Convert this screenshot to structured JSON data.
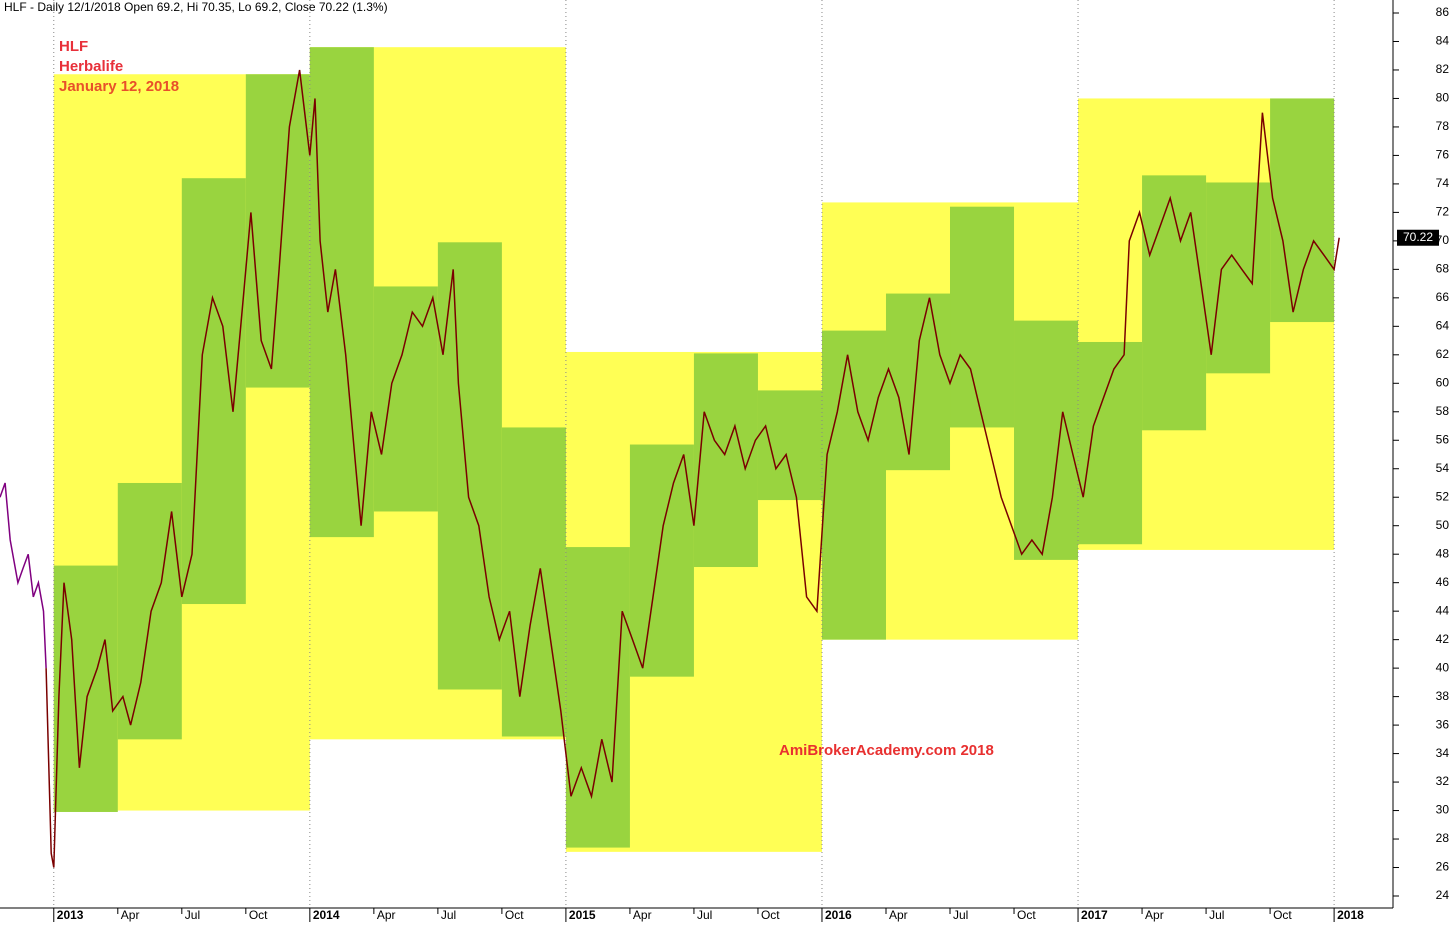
{
  "chart_data": {
    "type": "line",
    "title": "HLF - Daily 12/1/2018 Open 69.2, Hi 70.35, Lo 69.2, Close 70.22 (1.3%)",
    "annotations": [
      "HLF",
      "Herbalife",
      "January 12, 2018",
      "AmiBrokerAcademy.com 2018"
    ],
    "last_value": 70.22,
    "xlim": [
      2012.79,
      2018.23
    ],
    "ylim": [
      24,
      86
    ],
    "yticks": [
      24,
      26,
      28,
      30,
      32,
      34,
      36,
      38,
      40,
      42,
      44,
      46,
      48,
      50,
      52,
      54,
      56,
      58,
      60,
      62,
      64,
      66,
      68,
      70,
      72,
      74,
      76,
      78,
      80,
      82,
      84,
      86
    ],
    "xticks": [
      {
        "value": 2013,
        "label": "2013"
      },
      {
        "value": 2013.25,
        "label": "Apr"
      },
      {
        "value": 2013.5,
        "label": "Jul"
      },
      {
        "value": 2013.75,
        "label": "Oct"
      },
      {
        "value": 2014,
        "label": "2014"
      },
      {
        "value": 2014.25,
        "label": "Apr"
      },
      {
        "value": 2014.5,
        "label": "Jul"
      },
      {
        "value": 2014.75,
        "label": "Oct"
      },
      {
        "value": 2015,
        "label": "2015"
      },
      {
        "value": 2015.25,
        "label": "Apr"
      },
      {
        "value": 2015.5,
        "label": "Jul"
      },
      {
        "value": 2015.75,
        "label": "Oct"
      },
      {
        "value": 2016,
        "label": "2016"
      },
      {
        "value": 2016.25,
        "label": "Apr"
      },
      {
        "value": 2016.5,
        "label": "Jul"
      },
      {
        "value": 2016.75,
        "label": "Oct"
      },
      {
        "value": 2017,
        "label": "2017"
      },
      {
        "value": 2017.25,
        "label": "Apr"
      },
      {
        "value": 2017.5,
        "label": "Jul"
      },
      {
        "value": 2017.75,
        "label": "Oct"
      },
      {
        "value": 2018,
        "label": "2018"
      }
    ],
    "yearly_ranges": {
      "color": "#ffff55",
      "boxes": [
        {
          "x0": 2013,
          "x1": 2014,
          "low": 30.0,
          "high": 81.7
        },
        {
          "x0": 2014,
          "x1": 2015,
          "low": 35.0,
          "high": 83.6
        },
        {
          "x0": 2015,
          "x1": 2016,
          "low": 27.1,
          "high": 62.2
        },
        {
          "x0": 2016,
          "x1": 2017,
          "low": 42.0,
          "high": 72.7
        },
        {
          "x0": 2017,
          "x1": 2018,
          "low": 48.3,
          "high": 80.0
        }
      ]
    },
    "quarterly_ranges": {
      "color": "#99d43f",
      "boxes": [
        {
          "x0": 2013,
          "x1": 2013.25,
          "low": 29.9,
          "high": 47.2
        },
        {
          "x0": 2013.25,
          "x1": 2013.5,
          "low": 35.0,
          "high": 53.0
        },
        {
          "x0": 2013.5,
          "x1": 2013.75,
          "low": 44.5,
          "high": 74.4
        },
        {
          "x0": 2013.75,
          "x1": 2014,
          "low": 59.7,
          "high": 81.7
        },
        {
          "x0": 2014,
          "x1": 2014.25,
          "low": 49.2,
          "high": 83.6
        },
        {
          "x0": 2014.25,
          "x1": 2014.5,
          "low": 51.0,
          "high": 66.8
        },
        {
          "x0": 2014.5,
          "x1": 2014.75,
          "low": 38.5,
          "high": 69.9
        },
        {
          "x0": 2014.75,
          "x1": 2015,
          "low": 35.2,
          "high": 56.9
        },
        {
          "x0": 2015,
          "x1": 2015.25,
          "low": 27.4,
          "high": 48.5
        },
        {
          "x0": 2015.25,
          "x1": 2015.5,
          "low": 39.4,
          "high": 55.7
        },
        {
          "x0": 2015.5,
          "x1": 2015.75,
          "low": 47.1,
          "high": 62.1
        },
        {
          "x0": 2015.75,
          "x1": 2016,
          "low": 51.8,
          "high": 59.5
        },
        {
          "x0": 2016,
          "x1": 2016.25,
          "low": 42.0,
          "high": 63.7
        },
        {
          "x0": 2016.25,
          "x1": 2016.5,
          "low": 53.9,
          "high": 66.3
        },
        {
          "x0": 2016.5,
          "x1": 2016.75,
          "low": 56.9,
          "high": 72.4
        },
        {
          "x0": 2016.75,
          "x1": 2017,
          "low": 47.6,
          "high": 64.4
        },
        {
          "x0": 2017,
          "x1": 2017.25,
          "low": 48.7,
          "high": 62.9
        },
        {
          "x0": 2017.25,
          "x1": 2017.5,
          "low": 56.7,
          "high": 74.6
        },
        {
          "x0": 2017.5,
          "x1": 2017.75,
          "low": 60.7,
          "high": 74.1
        },
        {
          "x0": 2017.75,
          "x1": 2018,
          "low": 64.3,
          "high": 80.0
        }
      ]
    },
    "series": [
      {
        "color": "#800080",
        "x": [
          2012.79,
          2012.81,
          2012.83,
          2012.86,
          2012.88,
          2012.9,
          2012.92,
          2012.94,
          2012.96,
          2012.97
        ],
        "values": [
          52,
          53,
          49,
          46,
          47,
          48,
          45,
          46,
          44,
          40
        ]
      },
      {
        "color": "#7a0000",
        "x": [
          2012.97,
          2012.99,
          2013.0,
          2013.02,
          2013.04,
          2013.07,
          2013.1,
          2013.13,
          2013.17,
          2013.2,
          2013.23,
          2013.27,
          2013.3,
          2013.34,
          2013.38,
          2013.42,
          2013.46,
          2013.5,
          2013.54,
          2013.58,
          2013.62,
          2013.66,
          2013.7,
          2013.74,
          2013.77,
          2013.81,
          2013.85,
          2013.88,
          2013.92,
          2013.96,
          2014.0,
          2014.02,
          2014.04,
          2014.07,
          2014.1,
          2014.14,
          2014.18,
          2014.2,
          2014.24,
          2014.28,
          2014.32,
          2014.36,
          2014.4,
          2014.44,
          2014.48,
          2014.52,
          2014.56,
          2014.58,
          2014.62,
          2014.66,
          2014.7,
          2014.74,
          2014.78,
          2014.82,
          2014.86,
          2014.9,
          2014.94,
          2014.98,
          2015.02,
          2015.06,
          2015.1,
          2015.14,
          2015.18,
          2015.22,
          2015.26,
          2015.3,
          2015.34,
          2015.38,
          2015.42,
          2015.46,
          2015.5,
          2015.54,
          2015.58,
          2015.62,
          2015.66,
          2015.7,
          2015.74,
          2015.78,
          2015.82,
          2015.86,
          2015.9,
          2015.94,
          2015.98,
          2016.02,
          2016.06,
          2016.1,
          2016.14,
          2016.18,
          2016.22,
          2016.26,
          2016.3,
          2016.34,
          2016.38,
          2016.42,
          2016.46,
          2016.5,
          2016.54,
          2016.58,
          2016.62,
          2016.66,
          2016.7,
          2016.74,
          2016.78,
          2016.82,
          2016.86,
          2016.9,
          2016.94,
          2016.98,
          2017.02,
          2017.06,
          2017.1,
          2017.14,
          2017.18,
          2017.2,
          2017.24,
          2017.28,
          2017.32,
          2017.36,
          2017.4,
          2017.44,
          2017.48,
          2017.52,
          2017.56,
          2017.6,
          2017.64,
          2017.68,
          2017.72,
          2017.76,
          2017.8,
          2017.84,
          2017.88,
          2017.92,
          2017.96,
          2018.0,
          2018.02
        ],
        "values": [
          40,
          27,
          26,
          38,
          46,
          42,
          33,
          38,
          40,
          42,
          37,
          38,
          36,
          39,
          44,
          46,
          51,
          45,
          48,
          62,
          66,
          64,
          58,
          66,
          72,
          63,
          61,
          68,
          78,
          82,
          76,
          80,
          70,
          65,
          68,
          62,
          54,
          50,
          58,
          55,
          60,
          62,
          65,
          64,
          66,
          62,
          68,
          60,
          52,
          50,
          45,
          42,
          44,
          38,
          43,
          47,
          42,
          37,
          31,
          33,
          31,
          35,
          32,
          44,
          42,
          40,
          45,
          50,
          53,
          55,
          50,
          58,
          56,
          55,
          57,
          54,
          56,
          57,
          54,
          55,
          52,
          45,
          44,
          55,
          58,
          62,
          58,
          56,
          59,
          61,
          59,
          55,
          63,
          66,
          62,
          60,
          62,
          61,
          58,
          55,
          52,
          50,
          48,
          49,
          48,
          52,
          58,
          55,
          52,
          57,
          59,
          61,
          62,
          70,
          72,
          69,
          71,
          73,
          70,
          72,
          67,
          62,
          68,
          69,
          68,
          67,
          79,
          73,
          70,
          65,
          68,
          70,
          69,
          68,
          70.22
        ]
      }
    ]
  }
}
